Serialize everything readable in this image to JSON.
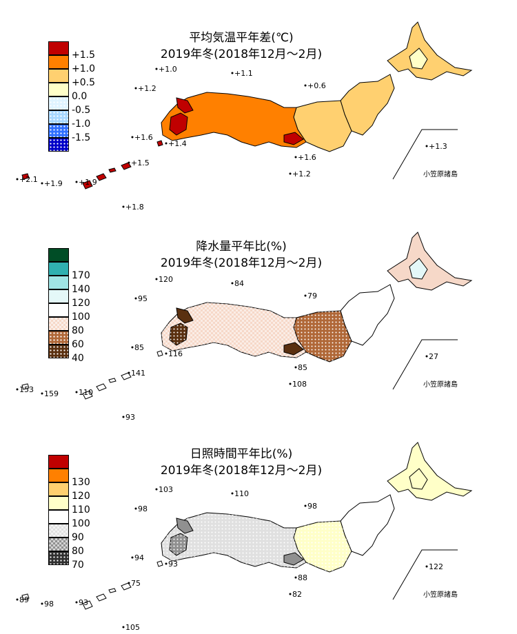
{
  "panels": [
    {
      "id": "temp",
      "title_line1": "平均気温平年差(℃)",
      "title_line2": "2019年冬(2018年12月～2月)",
      "legend": [
        {
          "label": "+1.5",
          "color": "#c00000",
          "pattern": "solid"
        },
        {
          "label": "+1.0",
          "color": "#ff8000",
          "pattern": "solid"
        },
        {
          "label": "+0.5",
          "color": "#ffd070",
          "pattern": "solid"
        },
        {
          "label": "0.0",
          "color": "#ffffc8",
          "pattern": "solid"
        },
        {
          "label": "-0.5",
          "color": "#e0f4ff",
          "pattern": "dots"
        },
        {
          "label": "-1.0",
          "color": "#a8d8ff",
          "pattern": "dots"
        },
        {
          "label": "-1.5",
          "color": "#3070ff",
          "pattern": "dots"
        },
        {
          "label": "",
          "color": "#0000c8",
          "pattern": "dots"
        }
      ],
      "station_labels": [
        "+1.0",
        "+1.1",
        "+1.2",
        "+0.6",
        "+1.6",
        "+1.4",
        "+1.5",
        "+2.1",
        "+1.9",
        "+1.9",
        "+1.6",
        "+1.2",
        "+1.8",
        "+1.3"
      ],
      "bonin": "小笠原諸島"
    },
    {
      "id": "precip",
      "title_line1": "降水量平年比(%)",
      "title_line2": "2019年冬(2018年12月～2月)",
      "legend": [
        {
          "label": "",
          "color": "#004d26",
          "pattern": "solid"
        },
        {
          "label": "170",
          "color": "#30b0b0",
          "pattern": "solid"
        },
        {
          "label": "140",
          "color": "#a0e4e4",
          "pattern": "solid"
        },
        {
          "label": "120",
          "color": "#e4f8f8",
          "pattern": "solid"
        },
        {
          "label": "100",
          "color": "#ffffff",
          "pattern": "solid"
        },
        {
          "label": "80",
          "color": "#f6d8c8",
          "pattern": "check"
        },
        {
          "label": "60",
          "color": "#b06838",
          "pattern": "dots"
        },
        {
          "label": "40",
          "color": "#5a3010",
          "pattern": "dots"
        }
      ],
      "station_labels": [
        "120",
        "84",
        "95",
        "79",
        "85",
        "116",
        "141",
        "153",
        "159",
        "110",
        "85",
        "108",
        "93",
        "27"
      ],
      "bonin": "小笠原諸島"
    },
    {
      "id": "sun",
      "title_line1": "日照時間平年比(%)",
      "title_line2": "2019年冬(2018年12月～2月)",
      "legend": [
        {
          "label": "",
          "color": "#c00000",
          "pattern": "solid"
        },
        {
          "label": "130",
          "color": "#ff8000",
          "pattern": "solid"
        },
        {
          "label": "120",
          "color": "#ffd070",
          "pattern": "solid"
        },
        {
          "label": "110",
          "color": "#ffffc8",
          "pattern": "solid"
        },
        {
          "label": "100",
          "color": "#ffffff",
          "pattern": "dots"
        },
        {
          "label": "90",
          "color": "#e0e0e0",
          "pattern": "check"
        },
        {
          "label": "80",
          "color": "#909090",
          "pattern": "check"
        },
        {
          "label": "70",
          "color": "#303030",
          "pattern": "dots"
        }
      ],
      "station_labels": [
        "103",
        "110",
        "98",
        "98",
        "94",
        "93",
        "75",
        "89",
        "98",
        "93",
        "88",
        "82",
        "105",
        "122"
      ],
      "bonin": "小笠原諸島"
    }
  ],
  "region_colors": {
    "temp": {
      "hokkaido": "#ffd070",
      "hokkaido_e": "#ffffc8",
      "tohoku": "#ffd070",
      "kanto": "#ffd070",
      "west": "#ff8000",
      "hot": "#c00000",
      "islands": "#c00000"
    },
    "precip": {
      "hokkaido": "#f6d8c8",
      "hokkaido_e": "#e4f8f8",
      "tohoku": "#ffffff",
      "kanto": "#b06838",
      "west": "#f6d8c8",
      "hot": "#5a3010",
      "islands": "#ffffff"
    },
    "sun": {
      "hokkaido": "#ffffc8",
      "hokkaido_e": "#ffffc8",
      "tohoku": "#ffffff",
      "kanto": "#ffffc8",
      "west": "#e0e0e0",
      "hot": "#909090",
      "islands": "#ffffff"
    }
  }
}
